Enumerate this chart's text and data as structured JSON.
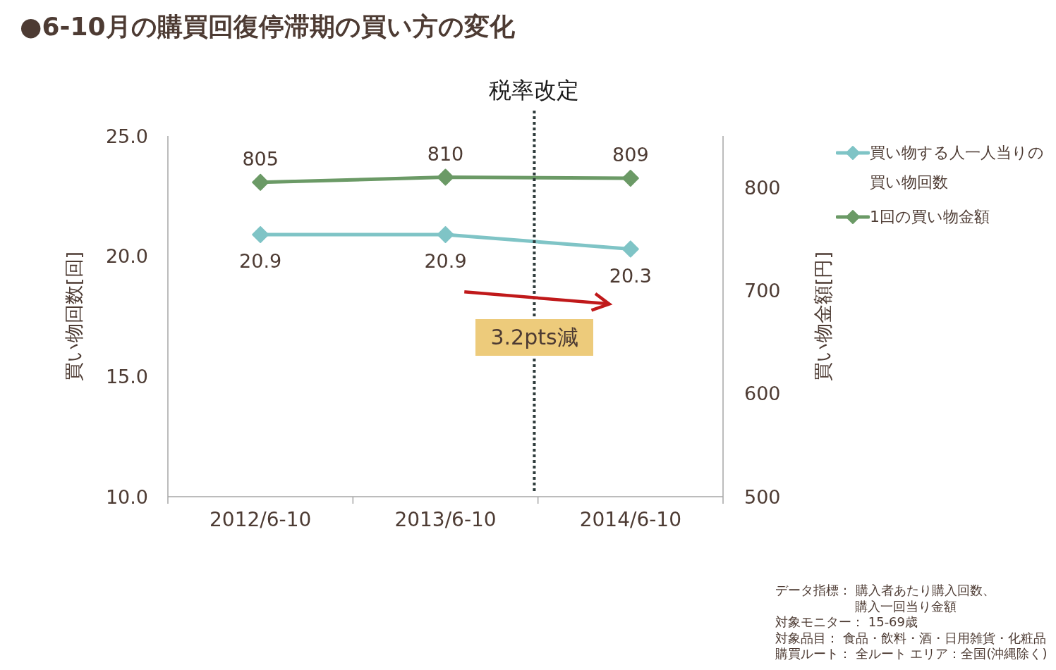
{
  "chart_data": {
    "type": "line",
    "title": "●6-10月の購買回復停滞期の買い方の変化",
    "ylabel": "買い物回数[回]",
    "y2label": "買い物金額[円]",
    "categories": [
      "2012/6-10",
      "2013/6-10",
      "2014/6-10"
    ],
    "series": [
      {
        "name": "買い物する人一人当りの買い物回数",
        "color": "#7fc4c6",
        "values": [
          20.9,
          20.9,
          20.3
        ]
      },
      {
        "name": "1回の買い物金額",
        "color": "#6b9a66",
        "values": [
          805,
          810,
          809
        ],
        "axis": "y2"
      }
    ],
    "ylim": [
      10,
      25
    ],
    "yticks": [
      {
        "value": 10,
        "label": "10.0"
      },
      {
        "value": 15,
        "label": "15.0"
      },
      {
        "value": 20,
        "label": "20.0"
      },
      {
        "value": 25,
        "label": "25.0"
      }
    ],
    "y2lim": [
      500,
      850
    ],
    "y2ticks": [
      500,
      600,
      700,
      800
    ],
    "annotations": [
      "税率改定",
      "3.2pts減",
      "データ指標： 購入者あたり購入回数、購入一回当り金額",
      "対象モニター： 15-69歳",
      "対象品目： 食品・飲料・酒・日用雑貨・化粧品",
      "購買ルート： 全ルート エリア：全国(沖縄除く)"
    ],
    "data_labels": true,
    "legend": "top right",
    "marker": "diamond"
  }
}
